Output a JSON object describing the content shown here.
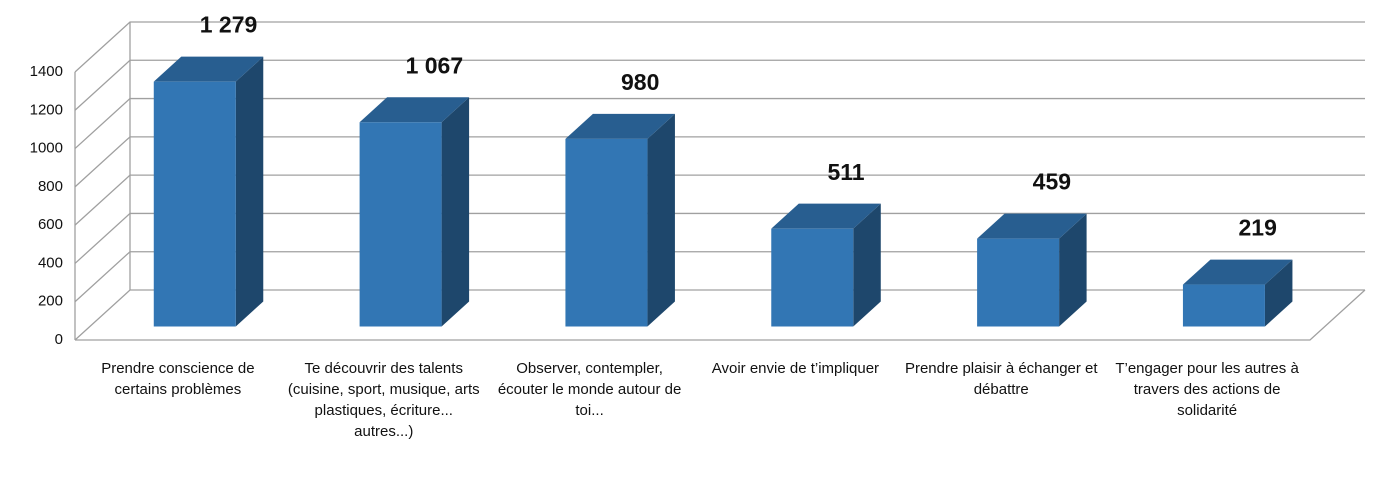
{
  "chart_data": {
    "type": "bar3d",
    "categories": [
      "Prendre conscience de certains problèmes",
      "Te découvrir des talents (cuisine, sport, musique, arts plastiques, écriture... autres...)",
      "Observer, contempler, écouter le monde autour de toi...",
      "Avoir envie de t’impliquer",
      "Prendre plaisir à échanger et débattre",
      "T’engager pour les autres à travers des actions de solidarité"
    ],
    "values": [
      1279,
      1067,
      980,
      511,
      459,
      219
    ],
    "value_labels": [
      "1 279",
      "1 067",
      "980",
      "511",
      "459",
      "219"
    ],
    "color": "#3276b4",
    "ylim": [
      0,
      1400
    ],
    "yticks": [
      0,
      200,
      400,
      600,
      800,
      1000,
      1200,
      1400
    ],
    "grid": true
  }
}
